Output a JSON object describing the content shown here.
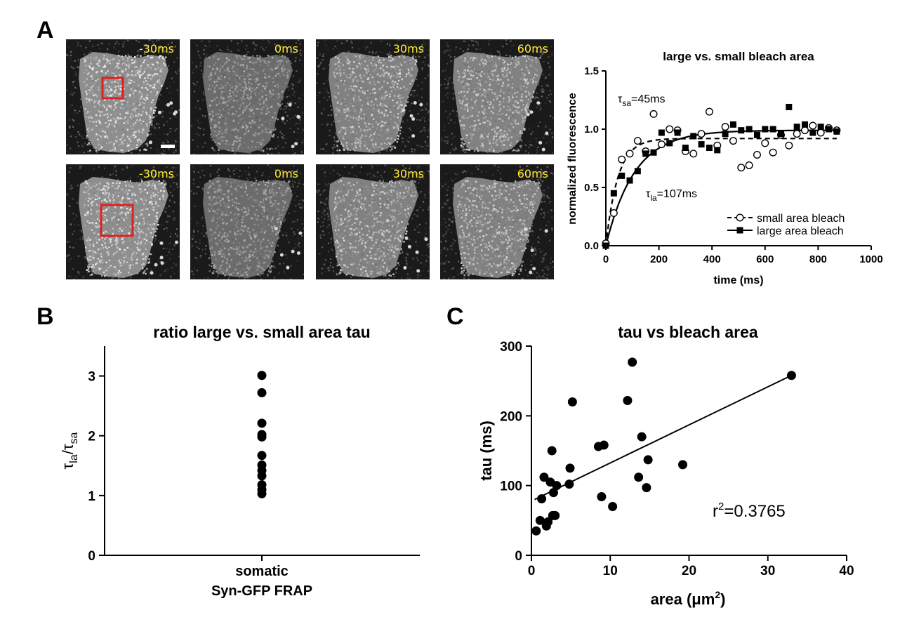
{
  "panels": {
    "A": "A",
    "B": "B",
    "C": "C"
  },
  "micrographs": {
    "row1_labels": [
      "-30ms",
      "0ms",
      "30ms",
      "60ms"
    ],
    "row2_labels": [
      "-30ms",
      "0ms",
      "30ms",
      "60ms"
    ]
  },
  "colors": {
    "bleach_box": "#e02020",
    "label": "#ffee33",
    "marker": "#000000"
  },
  "chart_data": [
    {
      "id": "A",
      "type": "scatter",
      "title": "large vs. small bleach area",
      "xlabel": "time (ms)",
      "ylabel": "normalized fluorescence",
      "xlim": [
        0,
        1000
      ],
      "ylim": [
        0,
        1.5
      ],
      "xticks": [
        "0",
        "200",
        "400",
        "600",
        "800",
        "1000"
      ],
      "yticks": [
        "0.0",
        "0.5",
        "1.0",
        "1.5"
      ],
      "annotations": {
        "tau_sa": {
          "symbol": "τ",
          "sub": "sa",
          "text": "=45ms"
        },
        "tau_la": {
          "symbol": "τ",
          "sub": "la",
          "text": "=107ms"
        }
      },
      "legend_position": "bottom-right",
      "series": [
        {
          "name": "small area bleach",
          "marker": "open-circle",
          "line": "dashed",
          "tau": 45,
          "plateau": 0.92,
          "x": [
            0,
            30,
            60,
            90,
            120,
            150,
            180,
            210,
            240,
            270,
            300,
            330,
            360,
            390,
            420,
            450,
            480,
            510,
            540,
            570,
            600,
            630,
            660,
            690,
            720,
            750,
            780,
            810,
            840,
            870
          ],
          "y": [
            0.02,
            0.28,
            0.74,
            0.79,
            0.9,
            0.81,
            1.13,
            0.87,
            1.0,
            0.99,
            0.81,
            0.79,
            0.96,
            1.15,
            0.86,
            1.02,
            0.9,
            0.67,
            0.69,
            0.78,
            0.88,
            0.8,
            0.95,
            0.86,
            0.96,
            0.99,
            1.03,
            0.97,
            1.01,
            0.99
          ]
        },
        {
          "name": "large area bleach",
          "marker": "filled-square",
          "line": "solid",
          "tau": 107,
          "plateau": 0.99,
          "x": [
            0,
            30,
            60,
            90,
            120,
            150,
            180,
            210,
            240,
            270,
            300,
            330,
            360,
            390,
            420,
            450,
            480,
            510,
            540,
            570,
            600,
            630,
            660,
            690,
            720,
            750,
            780,
            810,
            840,
            870
          ],
          "y": [
            0.0,
            0.45,
            0.6,
            0.56,
            0.64,
            0.79,
            0.8,
            0.97,
            0.88,
            0.97,
            0.84,
            0.94,
            0.87,
            0.84,
            0.82,
            0.96,
            1.04,
            0.99,
            1.0,
            0.95,
            1.0,
            1.0,
            0.96,
            1.19,
            1.02,
            1.04,
            0.97,
            1.02,
            1.0,
            0.98
          ]
        }
      ]
    },
    {
      "id": "B",
      "type": "scatter",
      "title": "ratio large vs. small area tau",
      "ylabel": {
        "symbol": "τ",
        "sub1": "la",
        "slash": "/",
        "sub2": "sa"
      },
      "ylim": [
        0,
        3.5
      ],
      "yticks": [
        "0",
        "1",
        "2",
        "3"
      ],
      "categories": [
        "somatic",
        "Syn-GFP FRAP"
      ],
      "values": [
        3.01,
        2.72,
        2.21,
        2.02,
        1.98,
        1.67,
        1.51,
        1.42,
        1.33,
        1.18,
        1.1,
        1.03
      ]
    },
    {
      "id": "C",
      "type": "scatter",
      "title": "tau vs bleach area",
      "xlabel": {
        "text": "area (",
        "unit": "μm",
        "sup": "2",
        "close": ")"
      },
      "ylabel": "tau (ms)",
      "xlim": [
        0,
        40
      ],
      "ylim": [
        0,
        300
      ],
      "xticks": [
        "0",
        "10",
        "20",
        "30",
        "40"
      ],
      "yticks": [
        "0",
        "100",
        "200",
        "300"
      ],
      "annotation": {
        "r": "r",
        "sup": "2",
        "text": "=0.3765"
      },
      "fit": {
        "x": [
          0.4,
          33.0
        ],
        "y": [
          80,
          258
        ]
      },
      "x": [
        0.6,
        1.1,
        1.3,
        1.6,
        1.9,
        2.1,
        2.4,
        2.6,
        2.7,
        2.8,
        3.0,
        3.2,
        4.8,
        4.9,
        5.2,
        8.5,
        8.9,
        9.2,
        10.3,
        12.2,
        12.8,
        13.6,
        14.0,
        14.6,
        14.8,
        19.2,
        33.0
      ],
      "y": [
        35,
        50,
        81,
        112,
        42,
        48,
        105,
        150,
        57,
        90,
        57,
        100,
        102,
        125,
        220,
        156,
        84,
        158,
        70,
        222,
        277,
        112,
        170,
        97,
        137,
        130,
        258
      ]
    }
  ]
}
